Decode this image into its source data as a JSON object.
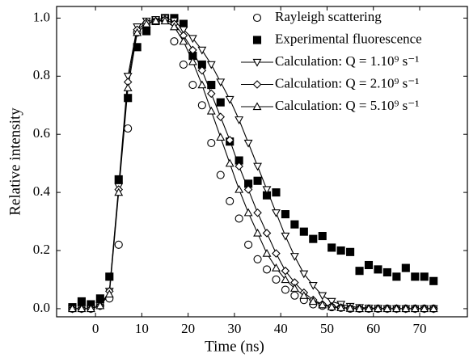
{
  "chart_data": {
    "type": "line",
    "x_label": "Time (ns)",
    "y_label": "Relative intensity",
    "x": [
      -5,
      -3,
      -1,
      1,
      3,
      5,
      7,
      9,
      11,
      13,
      15,
      17,
      19,
      21,
      23,
      25,
      27,
      29,
      31,
      33,
      35,
      37,
      39,
      41,
      43,
      45,
      47,
      49,
      51,
      53,
      55,
      57,
      59,
      61,
      63,
      65,
      67,
      69,
      71,
      73
    ],
    "series": [
      {
        "name": "Rayleigh scattering",
        "color": "#000000",
        "marker": "circle-open",
        "line": false,
        "values": [
          0,
          0,
          0,
          0.01,
          0.035,
          0.22,
          0.62,
          0.95,
          0.98,
          0.99,
          1.0,
          0.92,
          0.84,
          0.77,
          0.7,
          0.57,
          0.46,
          0.37,
          0.31,
          0.22,
          0.17,
          0.135,
          0.1,
          0.065,
          0.045,
          0.03,
          0.015,
          0.01,
          0.005,
          0.003,
          0,
          0,
          0,
          0,
          0,
          0,
          0,
          0,
          0,
          0
        ]
      },
      {
        "name": "Experimental fluorescence",
        "color": "#000000",
        "marker": "square-filled",
        "line": false,
        "values": [
          0.005,
          0.025,
          0.015,
          0.035,
          0.11,
          0.445,
          0.725,
          0.9,
          0.955,
          0.99,
          1.0,
          1.0,
          0.98,
          0.87,
          0.84,
          0.77,
          0.71,
          0.575,
          0.51,
          0.43,
          0.44,
          0.39,
          0.4,
          0.325,
          0.29,
          0.265,
          0.24,
          0.25,
          0.21,
          0.2,
          0.195,
          0.13,
          0.15,
          0.135,
          0.125,
          0.11,
          0.14,
          0.11,
          0.11,
          0.095
        ]
      },
      {
        "name": "Calculation: Q = 1.10⁹ s⁻¹",
        "color": "#000000",
        "marker": "triangle-down-open",
        "line": true,
        "values": [
          0,
          0,
          0,
          0.01,
          0.06,
          0.42,
          0.8,
          0.97,
          0.99,
          0.995,
          1.0,
          0.99,
          0.96,
          0.93,
          0.89,
          0.84,
          0.78,
          0.72,
          0.65,
          0.57,
          0.49,
          0.41,
          0.33,
          0.25,
          0.18,
          0.12,
          0.08,
          0.045,
          0.025,
          0.015,
          0.008,
          0.004,
          0.002,
          0.001,
          0,
          0,
          0,
          0,
          0,
          0
        ]
      },
      {
        "name": "Calculation: Q = 2.10⁹ s⁻¹",
        "color": "#000000",
        "marker": "diamond-open",
        "line": true,
        "values": [
          0,
          0,
          0,
          0.01,
          0.06,
          0.41,
          0.78,
          0.96,
          0.985,
          0.99,
          0.995,
          0.98,
          0.94,
          0.89,
          0.82,
          0.74,
          0.66,
          0.58,
          0.49,
          0.41,
          0.33,
          0.26,
          0.19,
          0.13,
          0.09,
          0.055,
          0.03,
          0.015,
          0.008,
          0.004,
          0.002,
          0.001,
          0,
          0,
          0,
          0,
          0,
          0,
          0,
          0
        ]
      },
      {
        "name": "Calculation: Q = 5.10⁹ s⁻¹",
        "color": "#000000",
        "marker": "triangle-up-open",
        "line": true,
        "values": [
          0,
          0,
          0,
          0.01,
          0.05,
          0.4,
          0.76,
          0.95,
          0.98,
          0.99,
          0.99,
          0.97,
          0.92,
          0.85,
          0.77,
          0.68,
          0.59,
          0.5,
          0.41,
          0.33,
          0.26,
          0.19,
          0.14,
          0.1,
          0.07,
          0.045,
          0.025,
          0.013,
          0.006,
          0.003,
          0.001,
          0,
          0,
          0,
          0,
          0,
          0,
          0,
          0,
          0
        ]
      }
    ],
    "xlim": [
      -8.4,
      80.3
    ],
    "ylim": [
      -0.028,
      1.04
    ],
    "xticks": [
      0,
      10,
      20,
      30,
      40,
      50,
      60,
      70
    ],
    "yticks": [
      {
        "value": 0,
        "label": "0.0"
      },
      {
        "value": 0.2,
        "label": "0.2"
      },
      {
        "value": 0.4,
        "label": "0.4"
      },
      {
        "value": 0.6,
        "label": "0.6"
      },
      {
        "value": 0.8,
        "label": "0.8"
      },
      {
        "value": 1,
        "label": "1.0"
      }
    ],
    "grid": false,
    "legend": "upper right"
  }
}
